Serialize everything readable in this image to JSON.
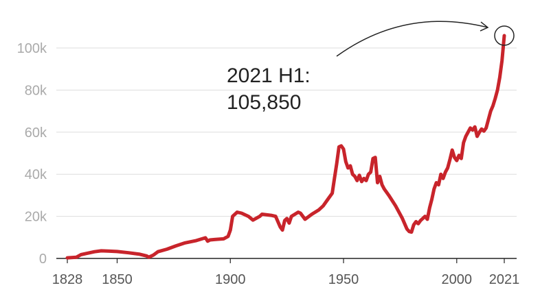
{
  "chart_data": {
    "type": "line",
    "title": "",
    "xlabel": "",
    "ylabel": "",
    "xlim": [
      1828,
      2021
    ],
    "ylim": [
      0,
      110000
    ],
    "grid": true,
    "y_ticks": [
      {
        "value": 0,
        "label": "0"
      },
      {
        "value": 20000,
        "label": "20k"
      },
      {
        "value": 40000,
        "label": "40k"
      },
      {
        "value": 60000,
        "label": "60k"
      },
      {
        "value": 80000,
        "label": "80k"
      },
      {
        "value": 100000,
        "label": "100k"
      }
    ],
    "x_ticks": [
      {
        "value": 1828,
        "label": "1828"
      },
      {
        "value": 1850,
        "label": "1850"
      },
      {
        "value": 1900,
        "label": "1900"
      },
      {
        "value": 1950,
        "label": "1950"
      },
      {
        "value": 2000,
        "label": "2000"
      },
      {
        "value": 2021,
        "label": "2021"
      }
    ],
    "series": [
      {
        "color": "#c8242b",
        "points": [
          [
            1828,
            300
          ],
          [
            1832,
            600
          ],
          [
            1834,
            1800
          ],
          [
            1837,
            2500
          ],
          [
            1840,
            3200
          ],
          [
            1843,
            3600
          ],
          [
            1846,
            3500
          ],
          [
            1850,
            3300
          ],
          [
            1855,
            2700
          ],
          [
            1860,
            2000
          ],
          [
            1863,
            1200
          ],
          [
            1864,
            600
          ],
          [
            1866,
            1600
          ],
          [
            1868,
            3200
          ],
          [
            1872,
            4400
          ],
          [
            1876,
            6000
          ],
          [
            1880,
            7400
          ],
          [
            1885,
            8500
          ],
          [
            1889,
            9800
          ],
          [
            1890,
            8200
          ],
          [
            1891,
            8800
          ],
          [
            1893,
            9000
          ],
          [
            1897,
            9300
          ],
          [
            1899,
            10500
          ],
          [
            1900,
            13500
          ],
          [
            1901,
            20000
          ],
          [
            1903,
            22000
          ],
          [
            1905,
            21500
          ],
          [
            1908,
            20000
          ],
          [
            1910,
            18200
          ],
          [
            1913,
            20000
          ],
          [
            1914,
            21000
          ],
          [
            1918,
            20500
          ],
          [
            1920,
            20000
          ],
          [
            1922,
            15000
          ],
          [
            1923,
            13500
          ],
          [
            1924,
            18000
          ],
          [
            1925,
            19000
          ],
          [
            1926,
            16800
          ],
          [
            1927,
            20000
          ],
          [
            1930,
            22000
          ],
          [
            1931,
            21500
          ],
          [
            1933,
            18600
          ],
          [
            1936,
            21000
          ],
          [
            1939,
            23000
          ],
          [
            1941,
            25000
          ],
          [
            1943,
            28000
          ],
          [
            1945,
            31000
          ],
          [
            1946,
            38000
          ],
          [
            1947,
            45000
          ],
          [
            1948,
            53000
          ],
          [
            1949,
            53500
          ],
          [
            1950,
            52000
          ],
          [
            1951,
            46000
          ],
          [
            1952,
            43000
          ],
          [
            1953,
            44000
          ],
          [
            1954,
            40000
          ],
          [
            1955,
            39000
          ],
          [
            1956,
            37000
          ],
          [
            1957,
            39500
          ],
          [
            1958,
            36500
          ],
          [
            1959,
            38000
          ],
          [
            1960,
            37000
          ],
          [
            1961,
            40000
          ],
          [
            1962,
            41000
          ],
          [
            1963,
            47500
          ],
          [
            1964,
            48000
          ],
          [
            1965,
            36000
          ],
          [
            1966,
            39000
          ],
          [
            1967,
            35000
          ],
          [
            1968,
            33000
          ],
          [
            1970,
            30000
          ],
          [
            1973,
            25000
          ],
          [
            1976,
            19000
          ],
          [
            1978,
            14000
          ],
          [
            1979,
            12800
          ],
          [
            1980,
            12500
          ],
          [
            1981,
            16000
          ],
          [
            1982,
            17500
          ],
          [
            1983,
            16500
          ],
          [
            1984,
            18000
          ],
          [
            1985,
            19000
          ],
          [
            1986,
            20000
          ],
          [
            1987,
            18600
          ],
          [
            1988,
            24000
          ],
          [
            1989,
            28000
          ],
          [
            1990,
            33000
          ],
          [
            1991,
            36000
          ],
          [
            1992,
            35000
          ],
          [
            1993,
            40000
          ],
          [
            1994,
            38000
          ],
          [
            1995,
            41000
          ],
          [
            1996,
            43000
          ],
          [
            1997,
            47000
          ],
          [
            1998,
            51500
          ],
          [
            1999,
            48000
          ],
          [
            2000,
            46500
          ],
          [
            2001,
            49000
          ],
          [
            2002,
            47500
          ],
          [
            2003,
            55000
          ],
          [
            2004,
            58000
          ],
          [
            2005,
            60000
          ],
          [
            2006,
            62000
          ],
          [
            2007,
            61000
          ],
          [
            2008,
            62500
          ],
          [
            2009,
            58000
          ],
          [
            2010,
            60000
          ],
          [
            2011,
            61500
          ],
          [
            2012,
            60500
          ],
          [
            2013,
            62000
          ],
          [
            2014,
            66000
          ],
          [
            2015,
            70000
          ],
          [
            2016,
            72500
          ],
          [
            2017,
            76000
          ],
          [
            2018,
            80000
          ],
          [
            2019,
            86000
          ],
          [
            2020,
            94000
          ],
          [
            2021,
            105850
          ]
        ]
      }
    ],
    "annotation": {
      "lines": [
        "2021 H1:",
        "105,850"
      ],
      "x": 2021,
      "y": 105850
    }
  }
}
